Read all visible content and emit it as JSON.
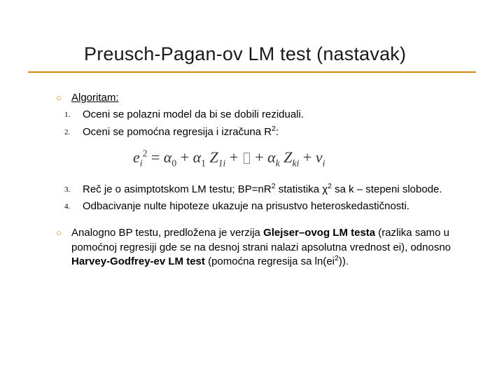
{
  "title": "Preusch-Pagan-ov LM test (nastavak)",
  "colors": {
    "accent": "#d18a00",
    "text": "#000000",
    "title": "#1a1a1a",
    "background": "#ffffff"
  },
  "typography": {
    "title_font": "Arial",
    "title_size_pt": 27,
    "body_font": "Verdana",
    "body_size_pt": 15,
    "formula_font": "Times New Roman",
    "formula_size_pt": 22
  },
  "items": {
    "i0": {
      "marker": "circle",
      "text": "Algoritam:",
      "underline": true
    },
    "i1": {
      "marker": "1.",
      "text": "Oceni se polazni model da bi se dobili reziduali."
    },
    "i2": {
      "marker": "2.",
      "text_html": "Oceni se pomoćna regresija i izračuna R<sup>2</sup>:"
    },
    "i3": {
      "marker": "3.",
      "text_html": "Reč je o asimptotskom LM testu; BP=nR<sup>2</sup> statistika χ<sup>2</sup> sa k – stepeni slobode."
    },
    "i4": {
      "marker": "4.",
      "text_html": "Odbacivanje nulte hipoteze ukazuje na prisustvo heteroskedastičnosti."
    },
    "i5": {
      "marker": "circle",
      "text_html": "Analogno BP testu, predložena je verzija <span class=\"b\">Glejser–ovog LM testa</span> (razlika samo u pomoćnoj regresiji gde se na desnoj strani nalazi apsolutna vrednost ei), odnosno <span class=\"b\">Harvey-Godfrey-ev LM test</span> (pomoćna regresija sa  ln(ei<sup>2</sup>))."
    }
  },
  "formula": {
    "latex_like": "e_i^2 = α_0 + α_1 Z_{1i} + … + α_k Z_{ki} + v_i",
    "parts": {
      "e": "e",
      "i": "i",
      "sq": "2",
      "eq": " = ",
      "a0": "α",
      "z0": "0",
      "plus": " + ",
      "a1": "α",
      "o1": "1",
      "Z": "Z",
      "z1i": "1i",
      "ak": "α",
      "k": "k",
      "Zk": "Z",
      "zki": "ki",
      "v": "v",
      "vi": "i"
    }
  }
}
